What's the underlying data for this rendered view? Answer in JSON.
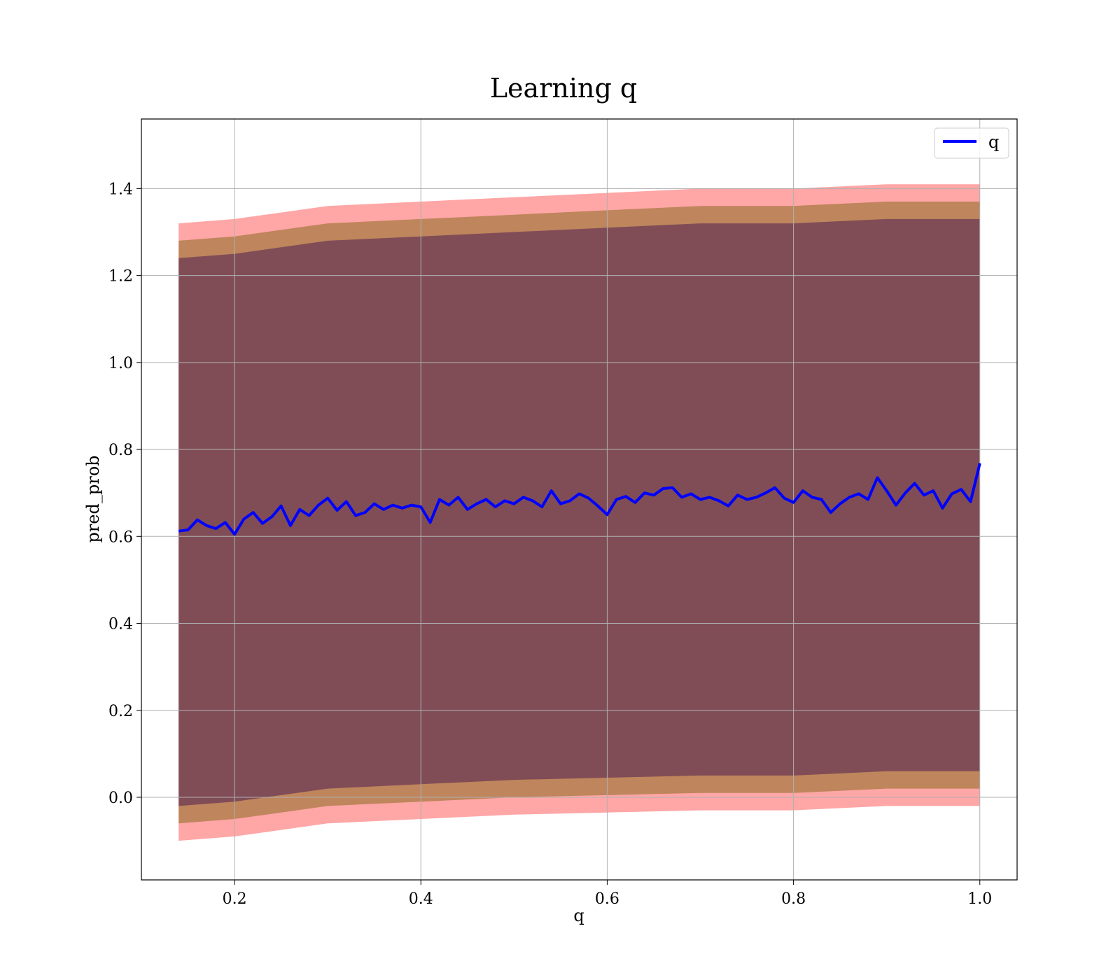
{
  "chart_data": {
    "type": "line",
    "title": "Learning q",
    "xlabel": "q",
    "ylabel": "pred_prob",
    "xlim": [
      0.1,
      1.04
    ],
    "ylim": [
      -0.19,
      1.56
    ],
    "xticks": [
      0.2,
      0.4,
      0.6,
      0.8,
      1.0
    ],
    "xtick_labels": [
      "0.2",
      "0.4",
      "0.6",
      "0.8",
      "1.0"
    ],
    "yticks": [
      0.0,
      0.2,
      0.4,
      0.6,
      0.8,
      1.0,
      1.2,
      1.4
    ],
    "ytick_labels": [
      "0.0",
      "0.2",
      "0.4",
      "0.6",
      "0.8",
      "1.0",
      "1.2",
      "1.4"
    ],
    "grid": true,
    "legend": {
      "position": "top-right",
      "entries": [
        "q"
      ]
    },
    "colors": {
      "line": "#0000ff",
      "band_outer": "#ff0000",
      "band_mid": "#8b6a1f",
      "band_inner": "#6b3b55",
      "grid": "#b0b0b0"
    },
    "series": [
      {
        "name": "q",
        "role": "mean line",
        "x": [
          0.14,
          0.15,
          0.16,
          0.17,
          0.18,
          0.19,
          0.2,
          0.21,
          0.22,
          0.23,
          0.24,
          0.25,
          0.26,
          0.27,
          0.28,
          0.29,
          0.3,
          0.31,
          0.32,
          0.33,
          0.34,
          0.35,
          0.36,
          0.37,
          0.38,
          0.39,
          0.4,
          0.41,
          0.42,
          0.43,
          0.44,
          0.45,
          0.46,
          0.47,
          0.48,
          0.49,
          0.5,
          0.51,
          0.52,
          0.53,
          0.54,
          0.55,
          0.56,
          0.57,
          0.58,
          0.59,
          0.6,
          0.61,
          0.62,
          0.63,
          0.64,
          0.65,
          0.66,
          0.67,
          0.68,
          0.69,
          0.7,
          0.71,
          0.72,
          0.73,
          0.74,
          0.75,
          0.76,
          0.77,
          0.78,
          0.79,
          0.8,
          0.81,
          0.82,
          0.83,
          0.84,
          0.85,
          0.86,
          0.87,
          0.88,
          0.89,
          0.9,
          0.91,
          0.92,
          0.93,
          0.94,
          0.95,
          0.96,
          0.97,
          0.98,
          0.99,
          1.0
        ],
        "y": [
          0.612,
          0.615,
          0.638,
          0.625,
          0.618,
          0.632,
          0.605,
          0.64,
          0.655,
          0.63,
          0.645,
          0.67,
          0.625,
          0.662,
          0.648,
          0.672,
          0.688,
          0.66,
          0.68,
          0.648,
          0.655,
          0.675,
          0.662,
          0.672,
          0.665,
          0.672,
          0.668,
          0.632,
          0.685,
          0.672,
          0.69,
          0.662,
          0.675,
          0.685,
          0.668,
          0.682,
          0.675,
          0.69,
          0.682,
          0.668,
          0.705,
          0.675,
          0.682,
          0.698,
          0.688,
          0.67,
          0.65,
          0.685,
          0.692,
          0.678,
          0.7,
          0.695,
          0.71,
          0.712,
          0.69,
          0.698,
          0.685,
          0.69,
          0.682,
          0.67,
          0.695,
          0.685,
          0.69,
          0.7,
          0.712,
          0.688,
          0.678,
          0.705,
          0.69,
          0.685,
          0.655,
          0.675,
          0.69,
          0.698,
          0.685,
          0.735,
          0.705,
          0.672,
          0.7,
          0.722,
          0.695,
          0.705,
          0.665,
          0.698,
          0.708,
          0.68,
          0.768
        ]
      },
      {
        "name": "",
        "role": "outer band",
        "x": [
          0.14,
          0.2,
          0.3,
          0.4,
          0.5,
          0.6,
          0.7,
          0.8,
          0.9,
          1.0
        ],
        "lower": [
          -0.1,
          -0.09,
          -0.06,
          -0.05,
          -0.04,
          -0.035,
          -0.03,
          -0.03,
          -0.02,
          -0.02
        ],
        "upper": [
          1.32,
          1.33,
          1.36,
          1.37,
          1.38,
          1.39,
          1.4,
          1.4,
          1.41,
          1.41
        ]
      },
      {
        "name": "",
        "role": "middle band",
        "x": [
          0.14,
          0.2,
          0.3,
          0.4,
          0.5,
          0.6,
          0.7,
          0.8,
          0.9,
          1.0
        ],
        "lower": [
          -0.06,
          -0.05,
          -0.02,
          -0.01,
          0.0,
          0.005,
          0.01,
          0.01,
          0.02,
          0.02
        ],
        "upper": [
          1.28,
          1.29,
          1.32,
          1.33,
          1.34,
          1.35,
          1.36,
          1.36,
          1.37,
          1.37
        ]
      },
      {
        "name": "",
        "role": "inner band",
        "x": [
          0.14,
          0.2,
          0.3,
          0.4,
          0.5,
          0.6,
          0.7,
          0.8,
          0.9,
          1.0
        ],
        "lower": [
          -0.02,
          -0.01,
          0.02,
          0.03,
          0.04,
          0.045,
          0.05,
          0.05,
          0.06,
          0.06
        ],
        "upper": [
          1.24,
          1.25,
          1.28,
          1.29,
          1.3,
          1.31,
          1.32,
          1.32,
          1.33,
          1.33
        ]
      }
    ]
  }
}
